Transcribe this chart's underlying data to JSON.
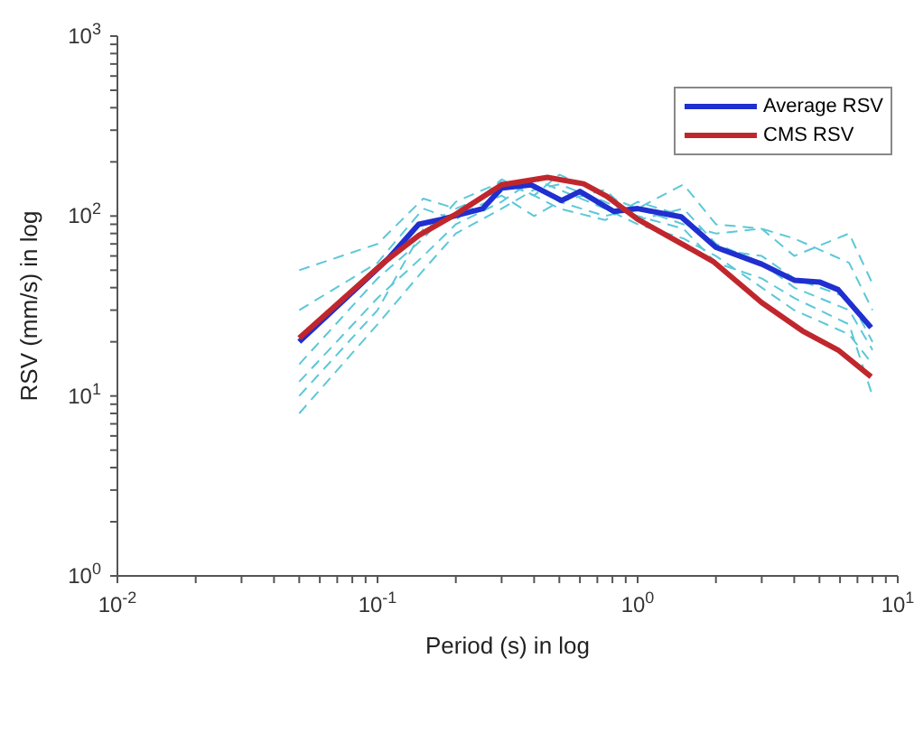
{
  "chart_data": {
    "type": "line",
    "xlabel": "Period (s) in log",
    "ylabel": "RSV (mm/s) in log",
    "log": "xy",
    "grid": false,
    "legend": "top right",
    "xlim": [
      0.01,
      10
    ],
    "ylim": [
      1,
      1000
    ],
    "xticks": [
      {
        "value": 0.01,
        "label": "10$^{-2}$"
      },
      {
        "value": 0.02,
        "label": null
      },
      {
        "value": 0.03,
        "label": null
      },
      {
        "value": 0.04,
        "label": null
      },
      {
        "value": 0.05,
        "label": null
      },
      {
        "value": 0.06,
        "label": null
      },
      {
        "value": 0.07,
        "label": null
      },
      {
        "value": 0.08,
        "label": null
      },
      {
        "value": 0.09,
        "label": null
      },
      {
        "value": 0.1,
        "label": "10$^{-1}$"
      },
      {
        "value": 0.2,
        "label": null
      },
      {
        "value": 0.3,
        "label": null
      },
      {
        "value": 0.4,
        "label": null
      },
      {
        "value": 0.5,
        "label": null
      },
      {
        "value": 0.6,
        "label": null
      },
      {
        "value": 0.7,
        "label": null
      },
      {
        "value": 0.8,
        "label": null
      },
      {
        "value": 0.9,
        "label": null
      },
      {
        "value": 1,
        "label": "10$^{0}$"
      },
      {
        "value": 2,
        "label": null
      },
      {
        "value": 3,
        "label": null
      },
      {
        "value": 4,
        "label": null
      },
      {
        "value": 5,
        "label": null
      },
      {
        "value": 6,
        "label": null
      },
      {
        "value": 7,
        "label": null
      },
      {
        "value": 8,
        "label": null
      },
      {
        "value": 9,
        "label": null
      },
      {
        "value": 10,
        "label": "10$^{1}$"
      }
    ],
    "yticks": [
      {
        "value": 1,
        "label": "10$^{0}$"
      },
      {
        "value": 2,
        "label": null
      },
      {
        "value": 3,
        "label": null
      },
      {
        "value": 4,
        "label": null
      },
      {
        "value": 5,
        "label": null
      },
      {
        "value": 6,
        "label": null
      },
      {
        "value": 7,
        "label": null
      },
      {
        "value": 8,
        "label": null
      },
      {
        "value": 9,
        "label": null
      },
      {
        "value": 10,
        "label": "10$^{1}$"
      },
      {
        "value": 20,
        "label": null
      },
      {
        "value": 30,
        "label": null
      },
      {
        "value": 40,
        "label": null
      },
      {
        "value": 50,
        "label": null
      },
      {
        "value": 60,
        "label": null
      },
      {
        "value": 70,
        "label": null
      },
      {
        "value": 80,
        "label": null
      },
      {
        "value": 90,
        "label": null
      },
      {
        "value": 100,
        "label": "10$^{2}$"
      },
      {
        "value": 200,
        "label": null
      },
      {
        "value": 300,
        "label": null
      },
      {
        "value": 400,
        "label": null
      },
      {
        "value": 500,
        "label": null
      },
      {
        "value": 600,
        "label": null
      },
      {
        "value": 700,
        "label": null
      },
      {
        "value": 800,
        "label": null
      },
      {
        "value": 900,
        "label": null
      },
      {
        "value": 1000,
        "label": "10$^{3}$"
      }
    ],
    "series": [
      {
        "color": "#5bc8d8",
        "line_style": "dashed",
        "x": [
          0.05,
          0.1,
          0.15,
          0.2,
          0.3,
          0.4,
          0.5,
          0.75,
          1,
          1.5,
          2,
          3,
          4,
          6.5,
          8
        ],
        "values": [
          50,
          70,
          125,
          110,
          140,
          150,
          120,
          100,
          110,
          150,
          90,
          85,
          60,
          80,
          42
        ]
      },
      {
        "color": "#5bc8d8",
        "line_style": "dashed",
        "x": [
          0.05,
          0.1,
          0.15,
          0.2,
          0.3,
          0.4,
          0.5,
          0.75,
          1,
          1.5,
          2,
          3,
          4,
          6.5,
          8
        ],
        "values": [
          30,
          55,
          110,
          95,
          160,
          130,
          170,
          130,
          110,
          90,
          80,
          85,
          75,
          55,
          30
        ]
      },
      {
        "color": "#5bc8d8",
        "line_style": "dashed",
        "x": [
          0.05,
          0.1,
          0.15,
          0.2,
          0.3,
          0.4,
          0.5,
          0.75,
          1,
          1.5,
          2,
          3,
          4,
          6.5,
          8
        ],
        "values": [
          15,
          45,
          75,
          120,
          155,
          130,
          110,
          95,
          120,
          100,
          65,
          60,
          45,
          35,
          20
        ]
      },
      {
        "color": "#5bc8d8",
        "line_style": "dashed",
        "x": [
          0.05,
          0.1,
          0.15,
          0.2,
          0.3,
          0.4,
          0.5,
          0.75,
          1,
          1.5,
          2,
          3,
          4,
          6.5,
          8
        ],
        "values": [
          12,
          35,
          60,
          90,
          120,
          160,
          140,
          110,
          90,
          75,
          60,
          40,
          30,
          22,
          15
        ]
      },
      {
        "color": "#5bc8d8",
        "line_style": "dashed",
        "x": [
          0.05,
          0.1,
          0.15,
          0.2,
          0.3,
          0.4,
          0.5,
          0.75,
          1,
          1.5,
          2,
          3,
          4,
          6.5,
          8
        ],
        "values": [
          10,
          30,
          85,
          100,
          130,
          100,
          120,
          140,
          95,
          110,
          70,
          55,
          40,
          30,
          18
        ]
      },
      {
        "color": "#5bc8d8",
        "line_style": "dashed",
        "x": [
          0.05,
          0.1,
          0.15,
          0.2,
          0.3,
          0.4,
          0.5,
          0.75,
          1,
          1.5,
          2,
          3,
          4,
          6.5,
          8
        ],
        "values": [
          8,
          25,
          50,
          80,
          110,
          140,
          150,
          120,
          100,
          85,
          55,
          45,
          35,
          25,
          10
        ]
      },
      {
        "name": "Average RSV",
        "color": "#1f2fd0",
        "line_style": "solid",
        "x": [
          0.05,
          0.11,
          0.144,
          0.177,
          0.254,
          0.3,
          0.39,
          0.51,
          0.6,
          0.81,
          1,
          1.47,
          2,
          3,
          4,
          5,
          5.9,
          7.9
        ],
        "values": [
          20,
          58,
          90,
          96,
          110,
          143,
          149,
          122,
          137,
          106,
          110,
          99,
          67,
          54,
          44,
          43,
          39,
          24
        ]
      },
      {
        "name": "CMS RSV",
        "color": "#c0272d",
        "line_style": "solid",
        "x": [
          0.05,
          0.107,
          0.144,
          0.197,
          0.3,
          0.45,
          0.62,
          0.76,
          1,
          1.95,
          3,
          4.3,
          5.9,
          7.9
        ],
        "values": [
          21,
          56,
          78,
          101,
          149,
          164,
          151,
          129,
          96,
          56,
          33,
          23,
          18,
          12.8
        ]
      }
    ]
  }
}
